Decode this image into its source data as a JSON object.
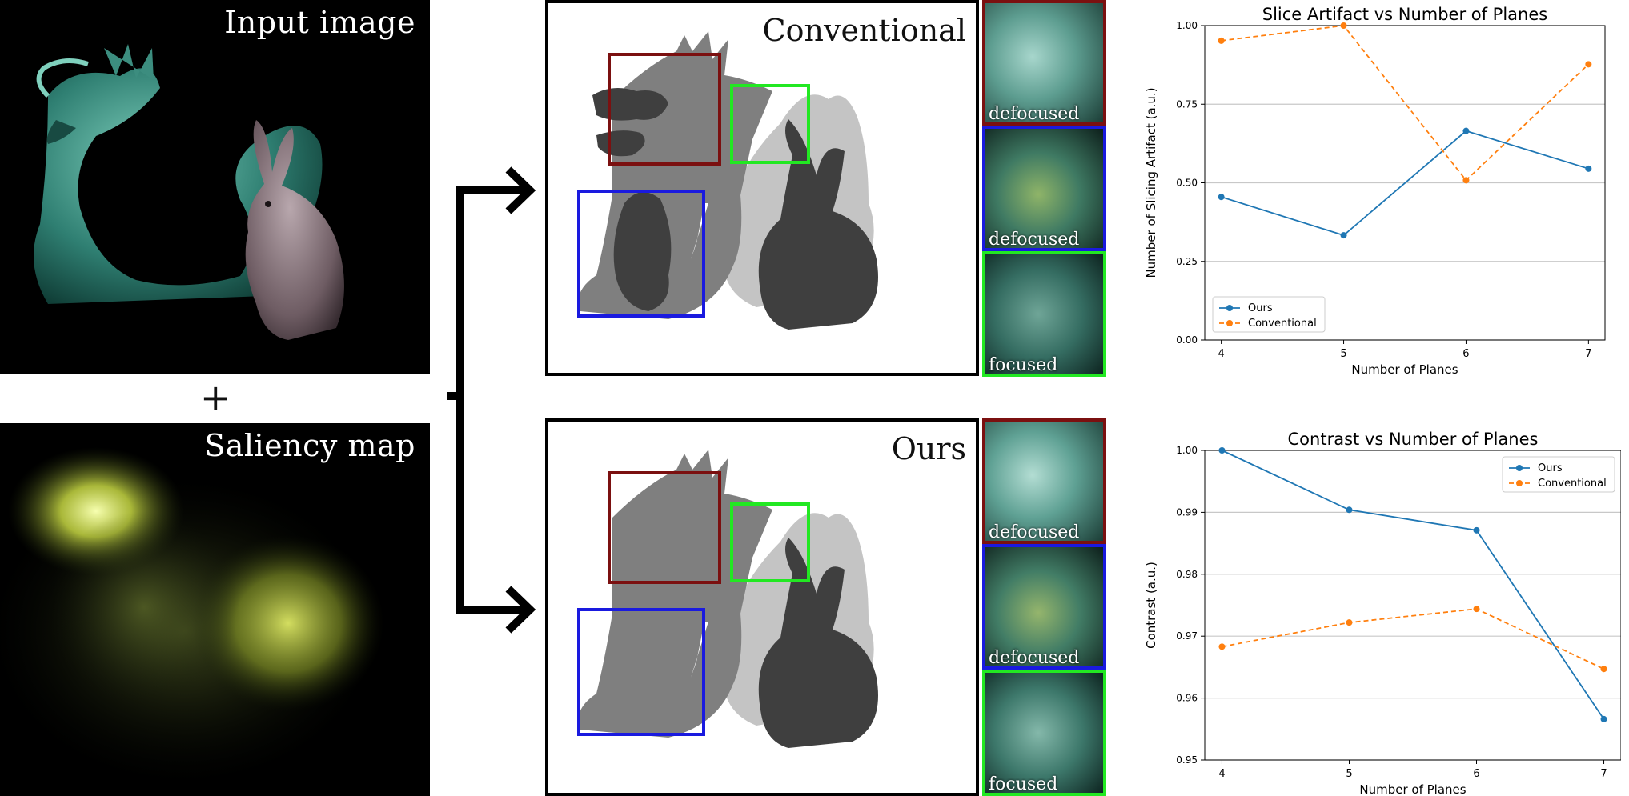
{
  "left_column": {
    "input_label": "Input image",
    "plus_sign": "+",
    "saliency_label": "Saliency map"
  },
  "panels": [
    {
      "id": "conventional",
      "title": "Conventional",
      "crops": [
        {
          "label": "defocused",
          "border": "#7b1010"
        },
        {
          "label": "defocused",
          "border": "#1a1adf"
        },
        {
          "label": "focused",
          "border": "#22e822"
        }
      ]
    },
    {
      "id": "ours",
      "title": "Ours",
      "crops": [
        {
          "label": "defocused",
          "border": "#7b1010"
        },
        {
          "label": "defocused",
          "border": "#1a1adf"
        },
        {
          "label": "focused",
          "border": "#22e822"
        }
      ]
    }
  ],
  "colors": {
    "ours": "#1f77b4",
    "conventional": "#ff7f0e",
    "box_red": "#7b1010",
    "box_blue": "#1a1adf",
    "box_green": "#22e822"
  },
  "chart_data": [
    {
      "type": "line",
      "title": "Slice Artifact vs Number of Planes",
      "xlabel": "Number of Planes",
      "ylabel": "Number of Slicing Artifact (a.u.)",
      "x": [
        4,
        5,
        6,
        7
      ],
      "xticks": [
        "4",
        "5",
        "6",
        "7"
      ],
      "ylim": [
        0,
        1
      ],
      "yticks": [
        "0.00",
        "0.25",
        "0.50",
        "0.75",
        "1.00"
      ],
      "ytick_values": [
        0,
        0.25,
        0.5,
        0.75,
        1.0
      ],
      "grid": "horizontal",
      "legend": "bottom-left",
      "series": [
        {
          "name": "Ours",
          "values": [
            0.455,
            0.333,
            0.665,
            0.545
          ]
        },
        {
          "name": "Conventional",
          "values": [
            0.952,
            1.0,
            0.508,
            0.877
          ]
        }
      ]
    },
    {
      "type": "line",
      "title": "Contrast vs Number of Planes",
      "xlabel": "Number of Planes",
      "ylabel": "Contrast (a.u.)",
      "x": [
        4,
        5,
        6,
        7
      ],
      "xticks": [
        "4",
        "5",
        "6",
        "7"
      ],
      "ylim": [
        0.95,
        1.0
      ],
      "yticks": [
        "0.95",
        "0.96",
        "0.97",
        "0.98",
        "0.99",
        "1.00"
      ],
      "ytick_values": [
        0.95,
        0.96,
        0.97,
        0.98,
        0.99,
        1.0
      ],
      "grid": "horizontal",
      "legend": "top-right",
      "series": [
        {
          "name": "Ours",
          "values": [
            1.0,
            0.9904,
            0.9871,
            0.9566
          ]
        },
        {
          "name": "Conventional",
          "values": [
            0.9683,
            0.9722,
            0.9744,
            0.9647
          ]
        }
      ]
    }
  ]
}
